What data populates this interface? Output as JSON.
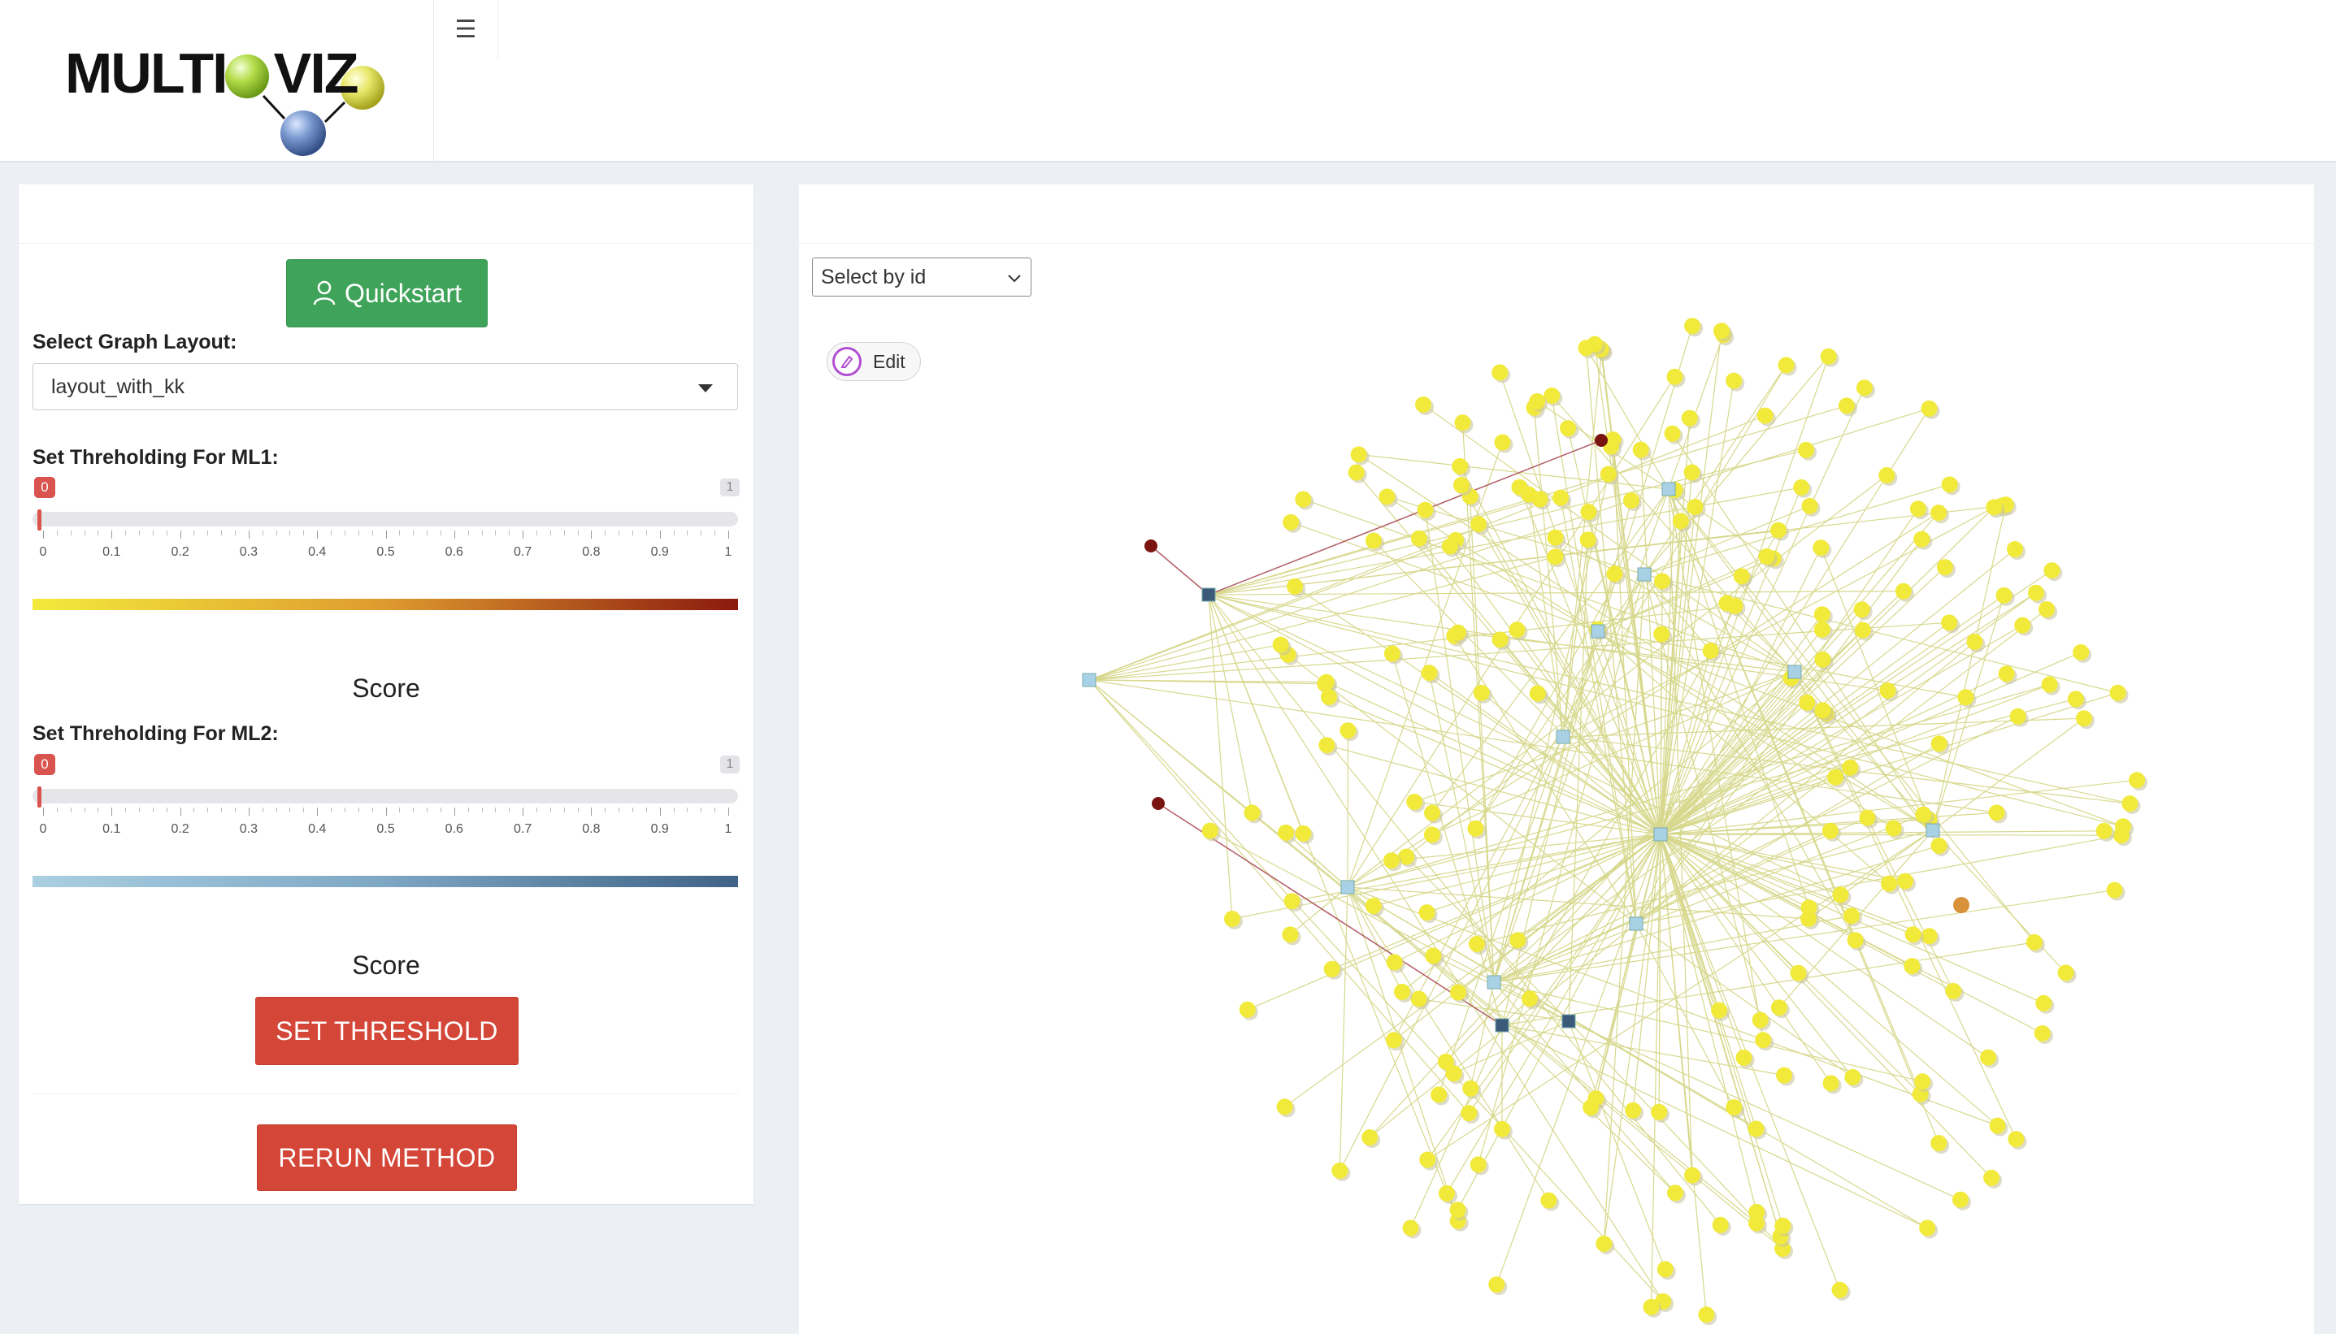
{
  "header": {
    "logo_text": "MULTIOVIZ",
    "menu_icon": "hamburger-icon"
  },
  "left_panel": {
    "quickstart_label": "Quickstart",
    "layout_label": "Select Graph Layout:",
    "layout_value": "layout_with_kk",
    "ml1_label": "Set Threholding For ML1:",
    "ml1_value": "0",
    "ml1_max": "1",
    "ml2_label": "Set Threholding For ML2:",
    "ml2_value": "0",
    "ml2_max": "1",
    "ticks": [
      "0",
      "0.1",
      "0.2",
      "0.3",
      "0.4",
      "0.5",
      "0.6",
      "0.7",
      "0.8",
      "0.9",
      "1"
    ],
    "score_label_1": "Score",
    "score_label_2": "Score",
    "set_threshold_label": "SET THRESHOLD",
    "rerun_label": "RERUN METHOD",
    "colors": {
      "ml1_gradient": [
        "#f3ea3c",
        "#de9a2e",
        "#8b1a0e"
      ],
      "ml2_gradient": [
        "#a9cfe1",
        "#7ea7c4",
        "#3f6386"
      ],
      "button_red": "#d44637",
      "quickstart_green": "#3fa45a"
    }
  },
  "right_panel": {
    "select_placeholder": "Select by id",
    "edit_label": "Edit",
    "network": {
      "node_color": "#f2ea3a",
      "hub_color_light": "#a9d1e6",
      "hub_color_dark": "#3b5a7a",
      "highlight_node_color": "#7a1410",
      "edge_color": "#d7d88d",
      "highlight_edge_color": "#b3636a"
    }
  }
}
